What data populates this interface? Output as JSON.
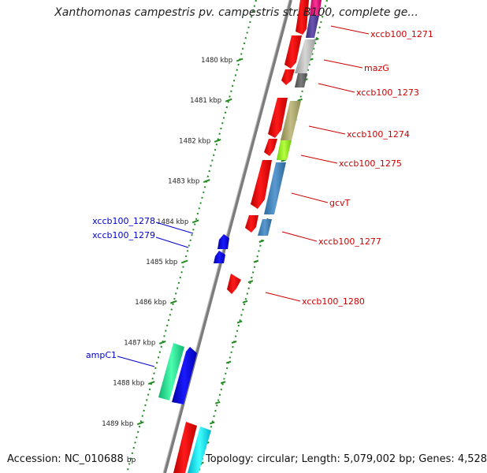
{
  "title": "Xanthomonas campestris pv. campestris str. B100, complete ge...",
  "footer": {
    "accession": "Accession: NC_010688",
    "accession_unit": "bp",
    "summary": "Topology: circular; Length: 5,079,002 bp; Genes: 4,528"
  },
  "ticks": [
    {
      "label": "1480 kbp"
    },
    {
      "label": "1481 kbp"
    },
    {
      "label": "1482 kbp"
    },
    {
      "label": "1483 kbp"
    },
    {
      "label": "1484 kbp"
    },
    {
      "label": "1485 kbp"
    },
    {
      "label": "1486 kbp"
    },
    {
      "label": "1487 kbp"
    },
    {
      "label": "1488 kbp"
    },
    {
      "label": "1489 kbp"
    }
  ],
  "gene_labels_right": [
    {
      "text": "xccb100_1271"
    },
    {
      "text": "mazG"
    },
    {
      "text": "xccb100_1273"
    },
    {
      "text": "xccb100_1274"
    },
    {
      "text": "xccb100_1275"
    },
    {
      "text": "gcvT"
    },
    {
      "text": "xccb100_1277"
    },
    {
      "text": "xccb100_1280"
    }
  ],
  "gene_labels_left": [
    {
      "text": "xccb100_1278"
    },
    {
      "text": "xccb100_1279"
    },
    {
      "text": "ampC1"
    }
  ],
  "colors": {
    "forward_gene": "#ff0000",
    "reverse_gene": "#0000ee",
    "right_label": "#cc0000",
    "left_label": "#0000cc",
    "tick": "#228822",
    "backbone": "#888888"
  }
}
